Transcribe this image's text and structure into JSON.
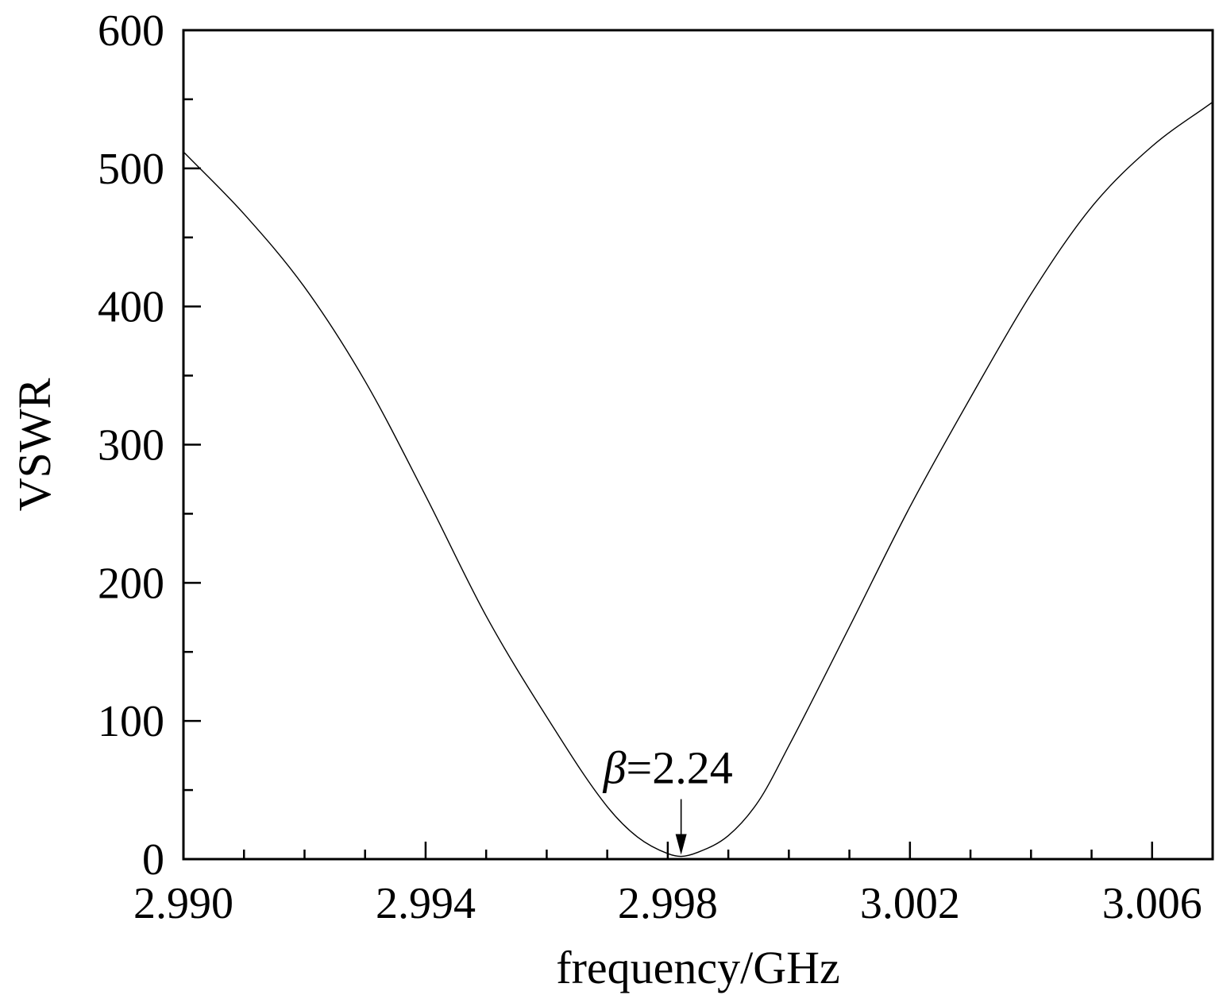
{
  "chart_data": {
    "type": "line",
    "xlabel": "frequency/GHz",
    "ylabel": "VSWR",
    "xlim": [
      2.99,
      3.007
    ],
    "ylim": [
      0,
      600
    ],
    "x_ticks": [
      2.99,
      2.994,
      2.998,
      3.002,
      3.006
    ],
    "x_tick_labels": [
      "2.990",
      "2.994",
      "2.998",
      "3.002",
      "3.006"
    ],
    "x_minor_step": 0.001,
    "y_ticks": [
      0,
      100,
      200,
      300,
      400,
      500,
      600
    ],
    "y_tick_labels": [
      "0",
      "100",
      "200",
      "300",
      "400",
      "500",
      "600"
    ],
    "y_minor_step": 50,
    "grid": false,
    "series": [
      {
        "color": "#000000",
        "x": [
          2.99,
          2.991,
          2.992,
          2.993,
          2.994,
          2.995,
          2.996,
          2.997,
          2.9975,
          2.998,
          2.99822,
          2.9985,
          2.999,
          2.9995,
          3.0,
          3.001,
          3.002,
          3.003,
          3.004,
          3.005,
          3.006,
          3.007
        ],
        "y": [
          512,
          467,
          414,
          346,
          263,
          176,
          103,
          38,
          16,
          4,
          2,
          5,
          17,
          42,
          82,
          168,
          255,
          334,
          409,
          472,
          516,
          548
        ]
      }
    ],
    "annotations": [
      {
        "symbol": "β",
        "text": "=2.24",
        "x": 2.99822,
        "y": 2
      }
    ]
  }
}
